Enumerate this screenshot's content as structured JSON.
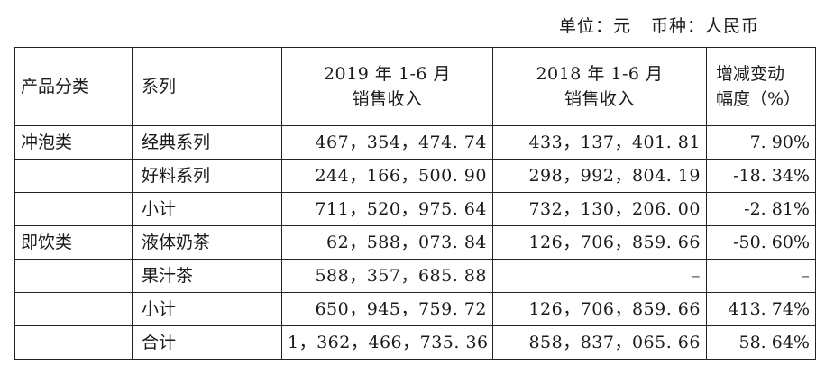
{
  "unit": {
    "unit_label": "单位：元",
    "currency_label": "币种：人民币"
  },
  "table": {
    "headers": {
      "category": "产品分类",
      "series": "系列",
      "revenue_2019_line1": "2019 年 1-6 月",
      "revenue_2019_line2": "销售收入",
      "revenue_2018_line1": "2018 年 1-6 月",
      "revenue_2018_line2": "销售收入",
      "change_line1": "增减变动",
      "change_line2": "幅度（%）"
    },
    "rows": [
      {
        "category": "冲泡类",
        "series": "经典系列",
        "rev2019": "467，354，474. 74",
        "rev2018": "433，137，401. 81",
        "change": "7. 90%"
      },
      {
        "category": "",
        "series": "好料系列",
        "rev2019": "244，166，500. 90",
        "rev2018": "298，992，804. 19",
        "change": "-18. 34%"
      },
      {
        "category": "",
        "series": "小计",
        "rev2019": "711，520，975. 64",
        "rev2018": "732，130，206. 00",
        "change": "-2. 81%"
      },
      {
        "category": "即饮类",
        "series": "液体奶茶",
        "rev2019": "62，588，073. 84",
        "rev2018": "126，706，859. 66",
        "change": "-50. 60%"
      },
      {
        "category": "",
        "series": "果汁茶",
        "rev2019": "588，357，685. 88",
        "rev2018": "–",
        "change": "–"
      },
      {
        "category": "",
        "series": "小计",
        "rev2019": "650，945，759. 72",
        "rev2018": "126，706，859. 66",
        "change": "413. 74%"
      },
      {
        "category": "",
        "series": "合计",
        "rev2019": "1，362，466，735. 36",
        "rev2018": "858，837，065. 66",
        "change": "58. 64%"
      }
    ]
  }
}
